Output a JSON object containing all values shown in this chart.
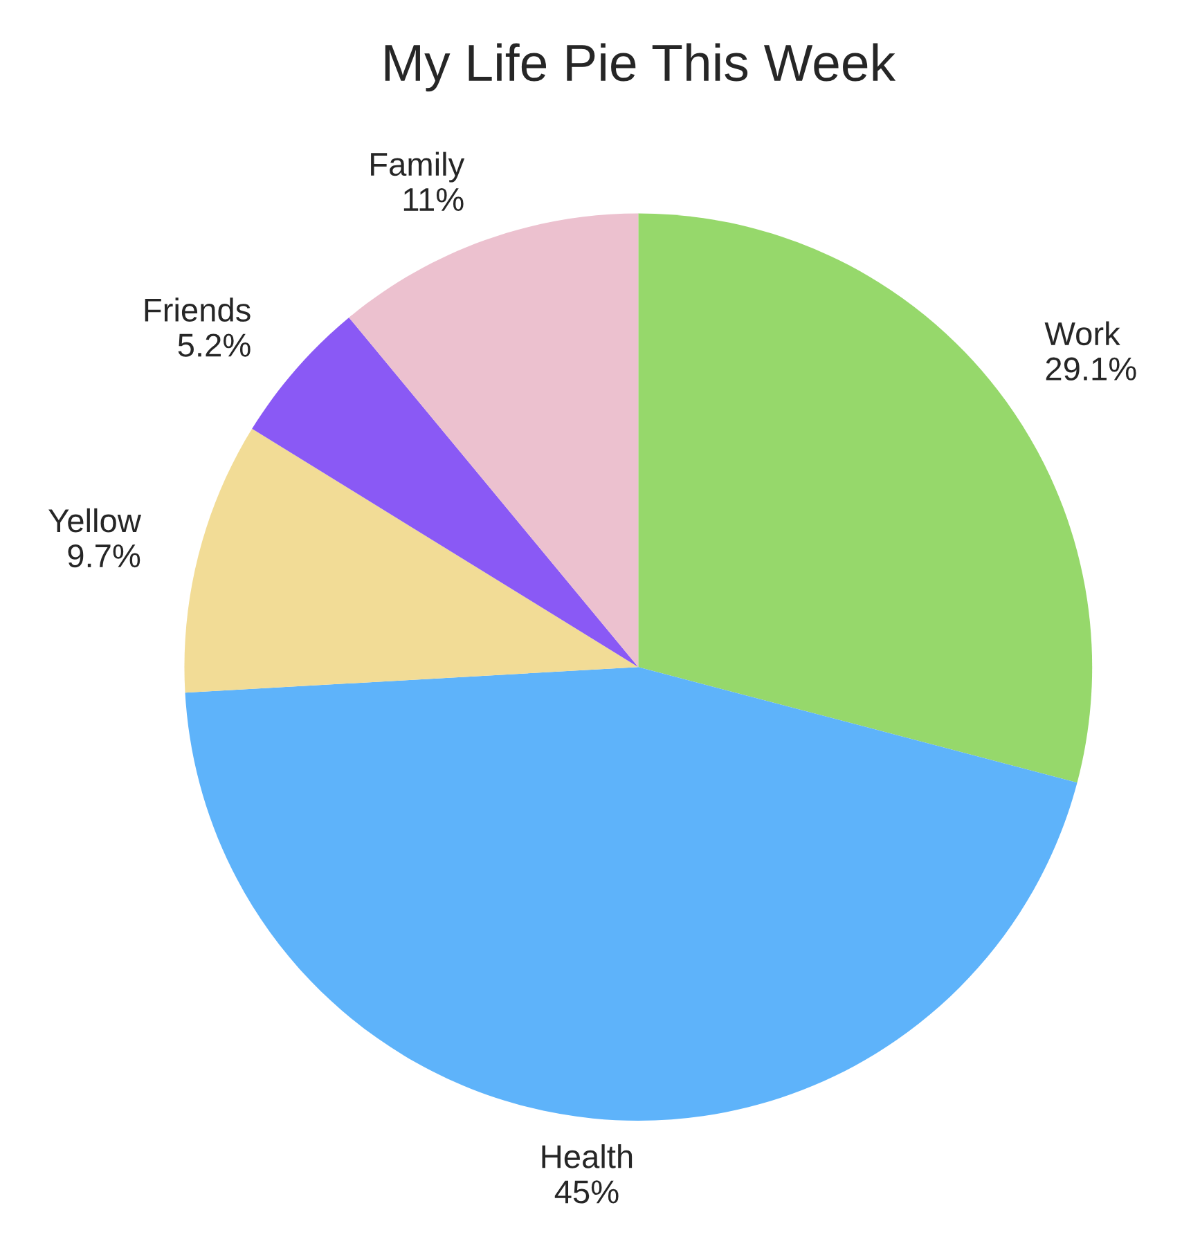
{
  "chart_data": {
    "type": "pie",
    "title": "My Life Pie This Week",
    "categories": [
      "Work",
      "Health",
      "Yellow",
      "Friends",
      "Family"
    ],
    "values": [
      29.1,
      45,
      9.7,
      5.2,
      11
    ],
    "value_labels": [
      "29.1%",
      "45%",
      "9.7%",
      "5.2%",
      "11%"
    ],
    "colors": [
      "#96d86b",
      "#5eb3fa",
      "#f2dc96",
      "#8a59f5",
      "#ecc1cf"
    ],
    "legend": false
  }
}
